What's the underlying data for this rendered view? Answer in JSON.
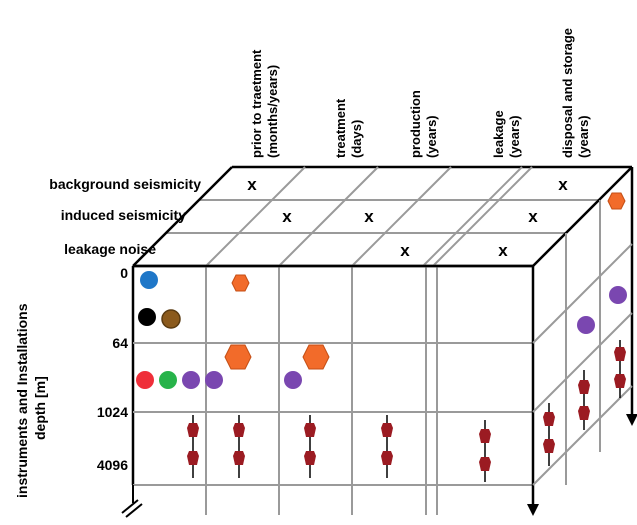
{
  "phases": [
    {
      "line1": "prior to traetment",
      "line2": "(months/years)"
    },
    {
      "line1": "treatment",
      "line2": "(days)"
    },
    {
      "line1": "production",
      "line2": "(years)"
    },
    {
      "line1": "leakage",
      "line2": "(years)"
    },
    {
      "line1": "disposal and storage",
      "line2": "(years)"
    }
  ],
  "top_rows": [
    "background seismicity",
    "induced seismicity",
    "leakage noise"
  ],
  "cross_mark": "x",
  "depths": [
    "0",
    "64",
    "1024",
    "4096"
  ],
  "axis_title": {
    "line1": "instruments and Installations",
    "line2": "depth [m]"
  },
  "colors": {
    "instrument_red": "#9b1b22",
    "hexagon_orange": "#f26b2a",
    "blue": "#1f77c8",
    "black": "#000000",
    "brown": "#8b5a1c",
    "red": "#ef2f3a",
    "green": "#27b34a",
    "purple": "#7a47b0",
    "grid": "#9a9a9a"
  }
}
